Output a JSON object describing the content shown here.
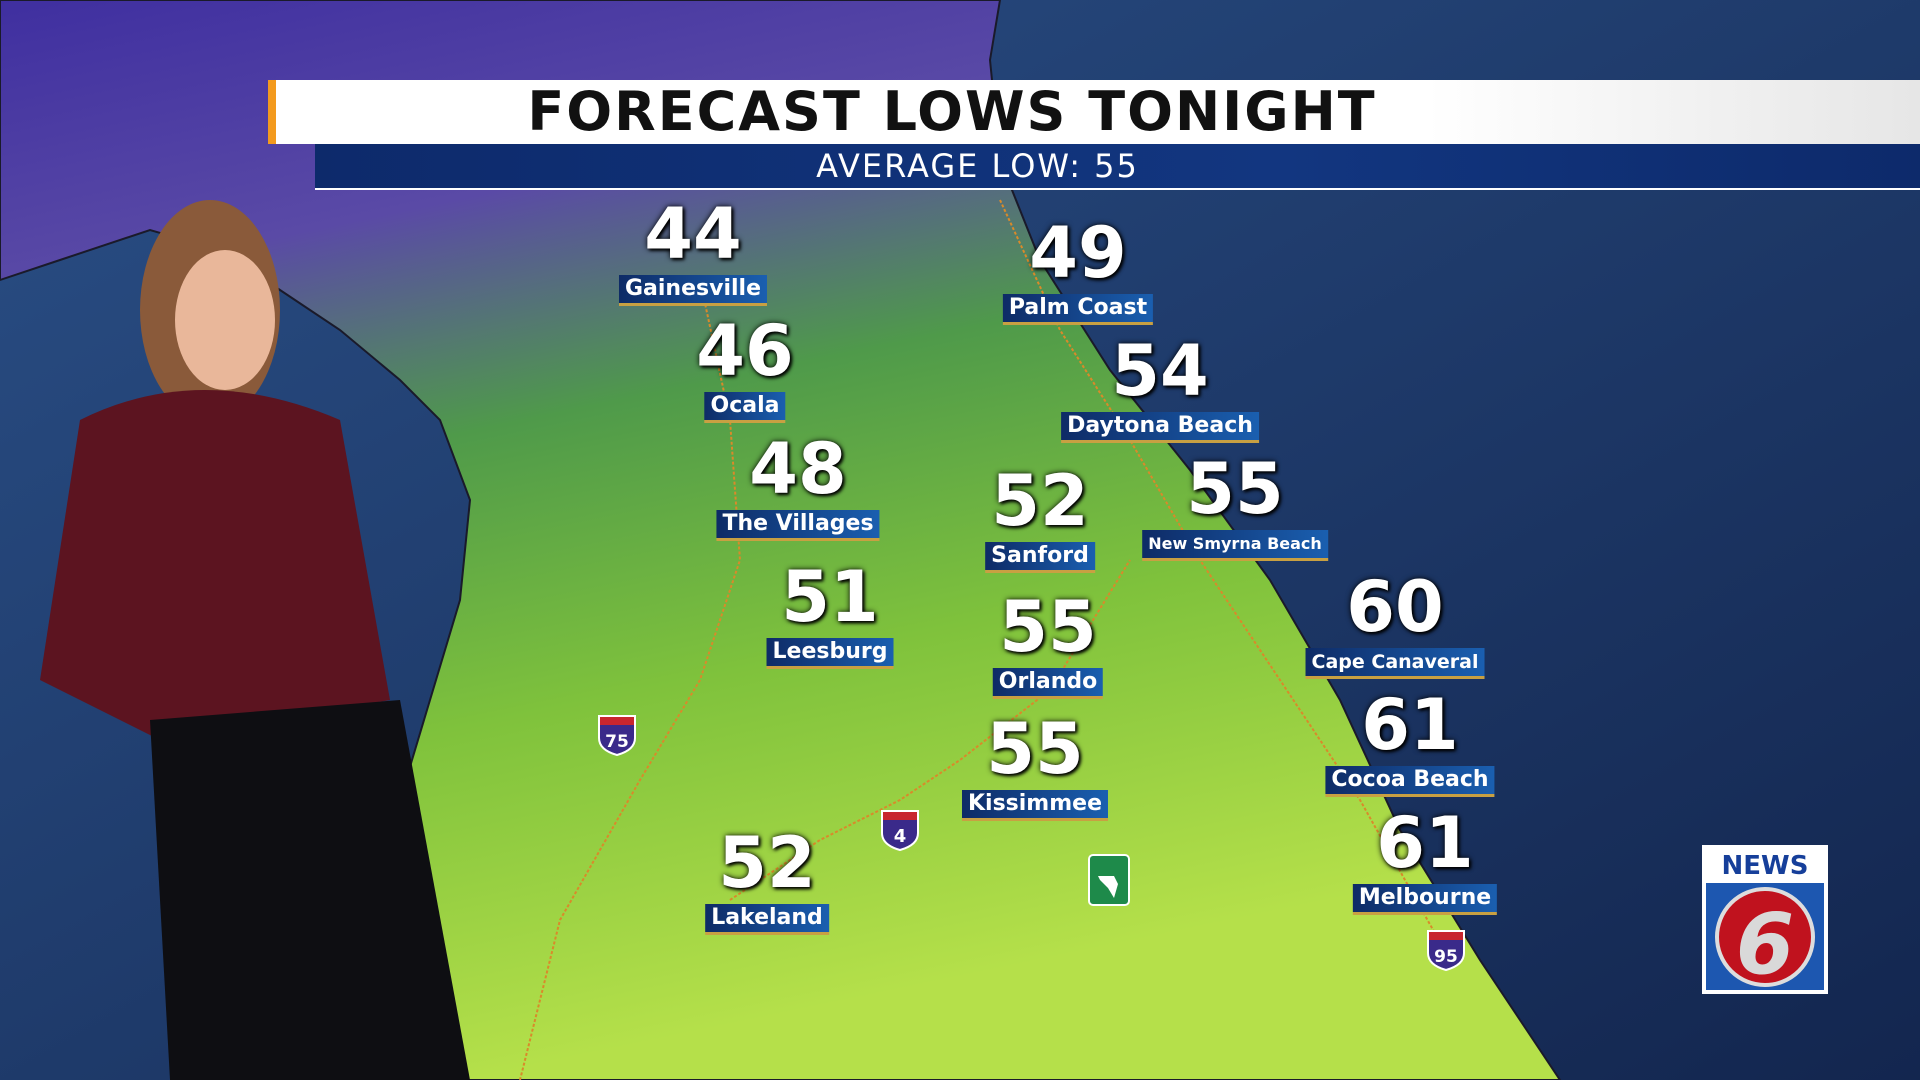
{
  "header": {
    "title": "FORECAST LOWS TONIGHT",
    "subtitle": "AVERAGE LOW: 55"
  },
  "cities": [
    {
      "name": "Gainesville",
      "low": "44"
    },
    {
      "name": "Palm Coast",
      "low": "49"
    },
    {
      "name": "Ocala",
      "low": "46"
    },
    {
      "name": "Daytona Beach",
      "low": "54"
    },
    {
      "name": "The Villages",
      "low": "48"
    },
    {
      "name": "New Smyrna Beach",
      "low": "55"
    },
    {
      "name": "Sanford",
      "low": "52"
    },
    {
      "name": "Cape Canaveral",
      "low": "60"
    },
    {
      "name": "Leesburg",
      "low": "51"
    },
    {
      "name": "Orlando",
      "low": "55"
    },
    {
      "name": "Cocoa Beach",
      "low": "61"
    },
    {
      "name": "Kissimmee",
      "low": "55"
    },
    {
      "name": "Melbourne",
      "low": "61"
    },
    {
      "name": "Lakeland",
      "low": "52"
    }
  ],
  "shields": {
    "i75": "75",
    "i4": "4",
    "i95": "95"
  },
  "logo": {
    "text": "NEWS",
    "number": "6"
  },
  "colors": {
    "ocean": "#1b3566",
    "land_cold": "#4b3aa8",
    "land_warm": "#b8e04a",
    "banner_blue": "#0d2a6b",
    "accent_orange": "#f39a1e"
  }
}
